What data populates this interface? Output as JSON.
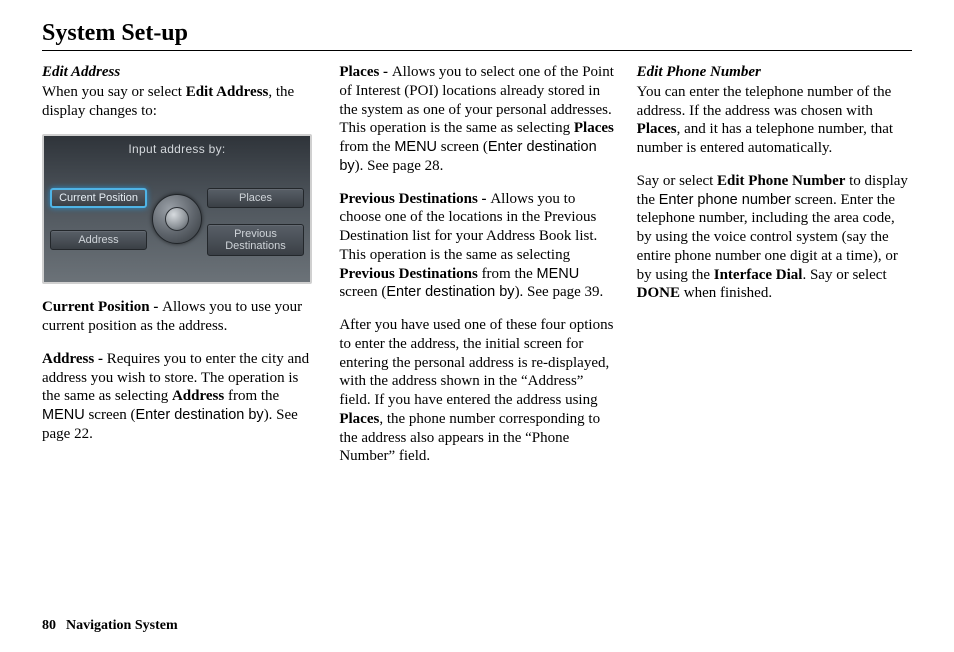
{
  "page": {
    "title": "System Set-up",
    "footer_page": "80",
    "footer_label": "Navigation System"
  },
  "col1": {
    "subhead": "Edit Address",
    "intro_pre": "When you say or select ",
    "intro_bold": "Edit Address",
    "intro_post": ", the display changes to:",
    "device": {
      "header": "Input address by:",
      "btn_tl": "Current Position",
      "btn_tr": "Places",
      "btn_bl": "Address",
      "btn_br": "Previous Destinations"
    },
    "p2_label": "Current Position - ",
    "p2_text": "Allows you to use your current position as the address.",
    "p3_label": "Address - ",
    "p3_a": "Requires you to enter the city and address you wish to store. The operation is the same as selecting ",
    "p3_bold": "Address",
    "p3_b": " from the ",
    "p3_sans1": "MENU",
    "p3_c": " screen (",
    "p3_sans2": "Enter destination by",
    "p3_d": "). See page 22."
  },
  "col2": {
    "p1_label": "Places - ",
    "p1_a": "Allows you to select one of the Point of Interest (POI) locations already stored in the system as one of your personal addresses. This operation is the same as selecting ",
    "p1_bold": "Places",
    "p1_b": " from the ",
    "p1_sans1": "MENU",
    "p1_c": " screen (",
    "p1_sans2": "Enter destination by",
    "p1_d": "). See page 28.",
    "p2_label": "Previous Destinations - ",
    "p2_a": "Allows you to choose one of the locations in the Previous Destination list for your Address Book list. This operation is the same as selecting ",
    "p2_bold": "Previous Destinations",
    "p2_b": " from the ",
    "p2_sans1": "MENU",
    "p2_c": " screen (",
    "p2_sans2": "Enter destination by",
    "p2_d": "). See page 39.",
    "p3_a": "After you have used one of these four options to enter the address, the initial screen for entering the personal address is re-displayed, with the address shown in the “Address” field. If you have entered the address using ",
    "p3_bold": "Places",
    "p3_b": ", the phone number corresponding to the address also appears in the “Phone Number” field."
  },
  "col3": {
    "subhead": "Edit Phone Number",
    "p1_a": "You can enter the telephone number of the address. If the address was chosen with ",
    "p1_bold": "Places",
    "p1_b": ", and it has a telephone number, that number is entered automatically.",
    "p2_a": "Say or select ",
    "p2_bold1": "Edit Phone Number",
    "p2_b": " to display the ",
    "p2_sans": "Enter phone number",
    "p2_c": " screen. Enter the telephone number, including the area code, by using the voice control system (say the entire phone number one digit at a time), or by using the ",
    "p2_bold2": "Interface Dial",
    "p2_d": ". Say or select ",
    "p2_bold3": "DONE",
    "p2_e": " when finished."
  }
}
